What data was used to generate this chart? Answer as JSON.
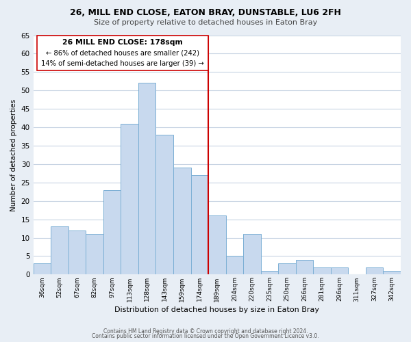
{
  "title1": "26, MILL END CLOSE, EATON BRAY, DUNSTABLE, LU6 2FH",
  "title2": "Size of property relative to detached houses in Eaton Bray",
  "xlabel": "Distribution of detached houses by size in Eaton Bray",
  "ylabel": "Number of detached properties",
  "bin_labels": [
    "36sqm",
    "52sqm",
    "67sqm",
    "82sqm",
    "97sqm",
    "113sqm",
    "128sqm",
    "143sqm",
    "159sqm",
    "174sqm",
    "189sqm",
    "204sqm",
    "220sqm",
    "235sqm",
    "250sqm",
    "266sqm",
    "281sqm",
    "296sqm",
    "311sqm",
    "327sqm",
    "342sqm"
  ],
  "bar_heights": [
    3,
    13,
    12,
    11,
    23,
    41,
    52,
    38,
    29,
    27,
    16,
    5,
    11,
    1,
    3,
    4,
    2,
    2,
    0,
    2,
    1
  ],
  "bar_color": "#c8d9ee",
  "bar_edge_color": "#7bafd4",
  "red_line_color": "#cc0000",
  "box_edge_color": "#cc0000",
  "ylim": [
    0,
    65
  ],
  "yticks": [
    0,
    5,
    10,
    15,
    20,
    25,
    30,
    35,
    40,
    45,
    50,
    55,
    60,
    65
  ],
  "annotation_box_text_line1": "26 MILL END CLOSE: 178sqm",
  "annotation_box_text_line2": "← 86% of detached houses are smaller (242)",
  "annotation_box_text_line3": "14% of semi-detached houses are larger (39) →",
  "footer1": "Contains HM Land Registry data © Crown copyright and database right 2024.",
  "footer2": "Contains public sector information licensed under the Open Government Licence v3.0.",
  "background_color": "#e8eef5",
  "plot_bg_color": "#ffffff",
  "grid_color": "#c8d4e3"
}
